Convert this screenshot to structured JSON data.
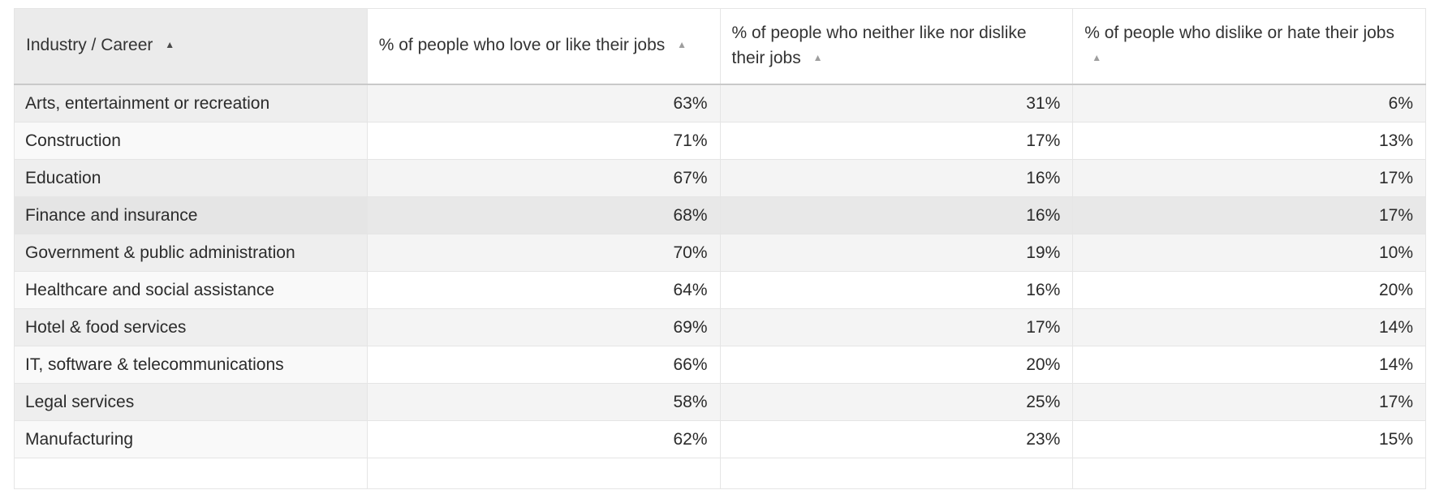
{
  "chart_data": {
    "type": "table",
    "columns": [
      "Industry / Career",
      "% of people who love or like their jobs",
      "% of people who neither like nor dislike their jobs",
      "% of people who dislike or hate their jobs"
    ],
    "column_sort_arrows": [
      "up",
      "up",
      "up",
      "up"
    ],
    "sort": {
      "column": "Industry / Career",
      "direction": "ascending"
    },
    "rows": [
      [
        "Arts, entertainment or recreation",
        "63%",
        "31%",
        "6%"
      ],
      [
        "Construction",
        "71%",
        "17%",
        "13%"
      ],
      [
        "Education",
        "67%",
        "16%",
        "17%"
      ],
      [
        "Finance and insurance",
        "68%",
        "16%",
        "17%"
      ],
      [
        "Government & public administration",
        "70%",
        "19%",
        "10%"
      ],
      [
        "Healthcare and social assistance",
        "64%",
        "16%",
        "20%"
      ],
      [
        "Hotel & food services",
        "69%",
        "17%",
        "14%"
      ],
      [
        "IT, software & telecommunications",
        "66%",
        "20%",
        "14%"
      ],
      [
        "Legal services",
        "58%",
        "25%",
        "17%"
      ],
      [
        "Manufacturing",
        "62%",
        "23%",
        "15%"
      ]
    ],
    "highlighted_row_index": 3,
    "trailing_empty_row": true
  },
  "colors": {
    "header_first_column_bg": "#ebebeb",
    "stripe_row_bg": "#f4f4f4",
    "stripe_row_first_col_bg": "#eeeeee",
    "plain_row_first_col_bg": "#f9f9f9",
    "highlight_row_bg": "#e8e8e8",
    "highlight_row_first_col_bg": "#e5e5e5",
    "grid_border": "#e5e5e5",
    "header_bottom_border": "#c9c9c9",
    "text": "#2b2b2b",
    "sort_arrow_active": "#4a4a4a",
    "sort_arrow_inactive": "#9e9e9e"
  }
}
